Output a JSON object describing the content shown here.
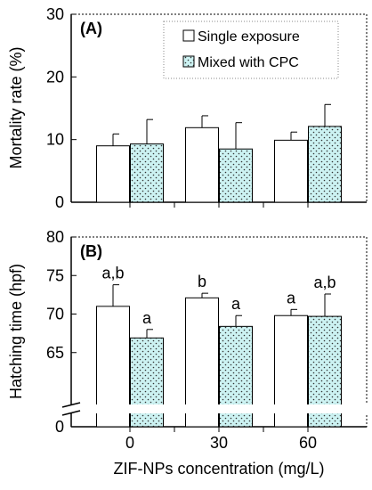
{
  "colors": {
    "single": "#ffffff",
    "mixed": "#ccf2f2",
    "dots": "#333333",
    "axis": "#000000"
  },
  "chart_data": [
    {
      "type": "bar",
      "panel": "(A)",
      "ylabel": "Mortality rate (%)",
      "ylim": [
        0,
        30
      ],
      "yticks": [
        0,
        10,
        20,
        30
      ],
      "categories": [
        "0",
        "30",
        "60"
      ],
      "grid": false,
      "legend_position": "top-right",
      "series": [
        {
          "name": "Single exposure",
          "values": [
            9.0,
            11.9,
            9.9
          ],
          "errors": [
            1.9,
            1.9,
            1.3
          ]
        },
        {
          "name": "Mixed with CPC",
          "values": [
            9.3,
            8.5,
            12.1
          ],
          "errors": [
            3.9,
            4.2,
            3.5
          ]
        }
      ]
    },
    {
      "type": "bar",
      "panel": "(B)",
      "ylabel": "Hatching time (hpf)",
      "xlabel": "ZIF-NPs concentration (mg/L)",
      "ylim": [
        0,
        80
      ],
      "axis_break": [
        0,
        62
      ],
      "yticks": [
        0,
        65,
        70,
        75,
        80
      ],
      "categories": [
        "0",
        "30",
        "60"
      ],
      "grid": false,
      "series": [
        {
          "name": "Single exposure",
          "values": [
            71.0,
            72.1,
            69.8
          ],
          "errors": [
            2.8,
            0.6,
            0.8
          ],
          "labels": [
            "a,b",
            "b",
            "a"
          ]
        },
        {
          "name": "Mixed with CPC",
          "values": [
            66.9,
            68.4,
            69.7
          ],
          "errors": [
            1.1,
            1.4,
            2.9
          ],
          "labels": [
            "a",
            "a",
            "a,b"
          ]
        }
      ]
    }
  ]
}
